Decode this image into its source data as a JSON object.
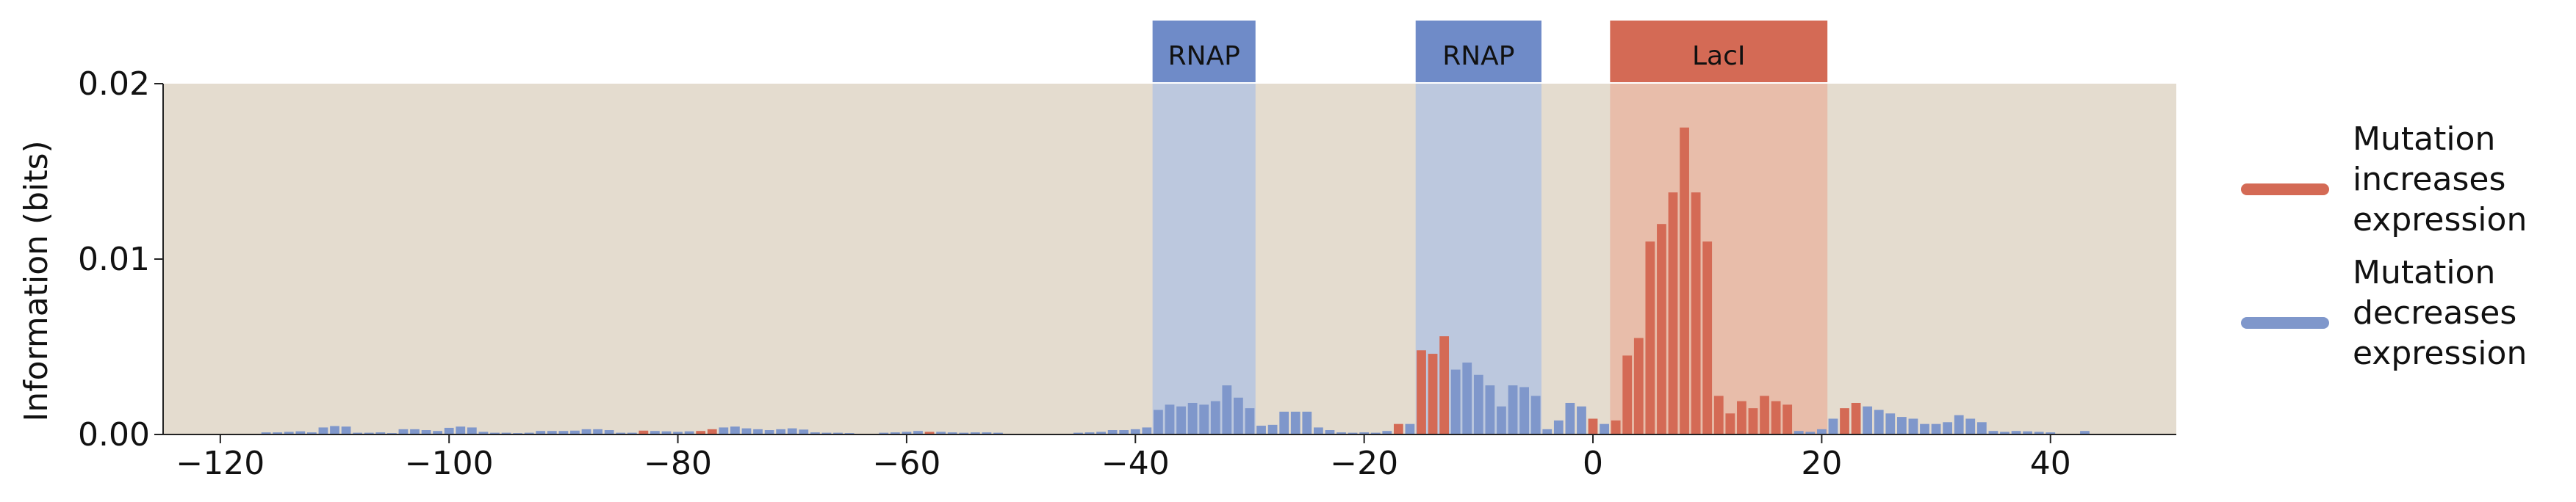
{
  "chart_data": {
    "type": "bar",
    "title": "",
    "xlabel": "",
    "ylabel": "Information (bits)",
    "xlim": [
      -125,
      51
    ],
    "ylim": [
      0,
      0.02
    ],
    "xticks": [
      -120,
      -100,
      -80,
      -60,
      -40,
      -20,
      0,
      20,
      40
    ],
    "xtick_labels": [
      "−120",
      "−100",
      "−80",
      "−60",
      "−40",
      "−20",
      "0",
      "20",
      "40"
    ],
    "yticks": [
      0,
      0.01,
      0.02
    ],
    "ytick_labels": [
      "0.00",
      "0.01",
      "0.02"
    ],
    "grid": false,
    "background": "#e4dccf",
    "colors": {
      "increase": "#d46a55",
      "decrease": "#7f97cb",
      "rnap_band": "#b9c6df",
      "laci_band": "#e8baa7",
      "rnap_label_bg": "#6f8bc8",
      "laci_label_bg": "#d46a55"
    },
    "regions": [
      {
        "label": "RNAP",
        "x0": -38,
        "x1": -30,
        "type": "RNAP"
      },
      {
        "label": "RNAP",
        "x0": -15,
        "x1": -5,
        "type": "RNAP"
      },
      {
        "label": "LacI",
        "x0": 2,
        "x1": 20,
        "type": "LacI"
      }
    ],
    "legend": {
      "position": "right",
      "entries": [
        {
          "lines": [
            "Mutation",
            "increases",
            "expression"
          ],
          "color": "#d46a55"
        },
        {
          "lines": [
            "Mutation",
            "decreases",
            "expression"
          ],
          "color": "#7f97cb"
        }
      ]
    },
    "bars": [
      [
        -116,
        0.00012,
        "d"
      ],
      [
        -115,
        0.00012,
        "d"
      ],
      [
        -114,
        0.00015,
        "d"
      ],
      [
        -113,
        0.00018,
        "d"
      ],
      [
        -112,
        0.00012,
        "d"
      ],
      [
        -111,
        0.0004,
        "d"
      ],
      [
        -110,
        0.00048,
        "d"
      ],
      [
        -109,
        0.00045,
        "d"
      ],
      [
        -108,
        0.0001,
        "d"
      ],
      [
        -107,
        0.0001,
        "d"
      ],
      [
        -106,
        0.00012,
        "d"
      ],
      [
        -105,
        8e-05,
        "d"
      ],
      [
        -104,
        0.0003,
        "d"
      ],
      [
        -103,
        0.0003,
        "d"
      ],
      [
        -102,
        0.00025,
        "d"
      ],
      [
        -101,
        0.0002,
        "d"
      ],
      [
        -100,
        0.00038,
        "d"
      ],
      [
        -99,
        0.00045,
        "d"
      ],
      [
        -98,
        0.0004,
        "d"
      ],
      [
        -97,
        0.00015,
        "d"
      ],
      [
        -96,
        0.0001,
        "d"
      ],
      [
        -95,
        0.0001,
        "d"
      ],
      [
        -94,
        8e-05,
        "d"
      ],
      [
        -93,
        0.0001,
        "d"
      ],
      [
        -92,
        0.0002,
        "d"
      ],
      [
        -91,
        0.0002,
        "d"
      ],
      [
        -90,
        0.0002,
        "d"
      ],
      [
        -89,
        0.00022,
        "d"
      ],
      [
        -88,
        0.0003,
        "d"
      ],
      [
        -87,
        0.0003,
        "d"
      ],
      [
        -86,
        0.00025,
        "d"
      ],
      [
        -85,
        0.0001,
        "d"
      ],
      [
        -84,
        0.0001,
        "d"
      ],
      [
        -83,
        0.00022,
        "i"
      ],
      [
        -82,
        0.0002,
        "d"
      ],
      [
        -81,
        0.00018,
        "d"
      ],
      [
        -80,
        0.00015,
        "d"
      ],
      [
        -79,
        0.00018,
        "d"
      ],
      [
        -78,
        0.0002,
        "i"
      ],
      [
        -77,
        0.0003,
        "i"
      ],
      [
        -76,
        0.0004,
        "d"
      ],
      [
        -75,
        0.00045,
        "d"
      ],
      [
        -74,
        0.00035,
        "d"
      ],
      [
        -73,
        0.0003,
        "d"
      ],
      [
        -72,
        0.00025,
        "d"
      ],
      [
        -71,
        0.0003,
        "d"
      ],
      [
        -70,
        0.00035,
        "d"
      ],
      [
        -69,
        0.00028,
        "d"
      ],
      [
        -68,
        0.00012,
        "d"
      ],
      [
        -67,
        0.0001,
        "d"
      ],
      [
        -66,
        0.0001,
        "d"
      ],
      [
        -65,
        8e-05,
        "d"
      ],
      [
        -62,
        0.0001,
        "d"
      ],
      [
        -61,
        0.00012,
        "d"
      ],
      [
        -60,
        0.00015,
        "d"
      ],
      [
        -59,
        0.0002,
        "d"
      ],
      [
        -58,
        0.00015,
        "i"
      ],
      [
        -57,
        0.00015,
        "d"
      ],
      [
        -56,
        0.00012,
        "d"
      ],
      [
        -55,
        0.0001,
        "d"
      ],
      [
        -54,
        0.00012,
        "d"
      ],
      [
        -53,
        0.00012,
        "d"
      ],
      [
        -52,
        0.0001,
        "d"
      ],
      [
        -45,
        0.0001,
        "d"
      ],
      [
        -44,
        0.00012,
        "d"
      ],
      [
        -43,
        0.00015,
        "d"
      ],
      [
        -42,
        0.00025,
        "d"
      ],
      [
        -41,
        0.00025,
        "d"
      ],
      [
        -40,
        0.0003,
        "d"
      ],
      [
        -39,
        0.0004,
        "d"
      ],
      [
        -38,
        0.0014,
        "d"
      ],
      [
        -37,
        0.0017,
        "d"
      ],
      [
        -36,
        0.0016,
        "d"
      ],
      [
        -35,
        0.0018,
        "d"
      ],
      [
        -34,
        0.0017,
        "d"
      ],
      [
        -33,
        0.0019,
        "d"
      ],
      [
        -32,
        0.0028,
        "d"
      ],
      [
        -31,
        0.0021,
        "d"
      ],
      [
        -30,
        0.0015,
        "d"
      ],
      [
        -29,
        0.0005,
        "d"
      ],
      [
        -28,
        0.00055,
        "d"
      ],
      [
        -27,
        0.0013,
        "d"
      ],
      [
        -26,
        0.0013,
        "d"
      ],
      [
        -25,
        0.0013,
        "d"
      ],
      [
        -24,
        0.0004,
        "d"
      ],
      [
        -23,
        0.00025,
        "d"
      ],
      [
        -22,
        0.00012,
        "d"
      ],
      [
        -21,
        0.0001,
        "d"
      ],
      [
        -20,
        0.00012,
        "d"
      ],
      [
        -19,
        0.0001,
        "d"
      ],
      [
        -18,
        0.0002,
        "d"
      ],
      [
        -17,
        0.0006,
        "i"
      ],
      [
        -16,
        0.0006,
        "d"
      ],
      [
        -15,
        0.0048,
        "i"
      ],
      [
        -14,
        0.0046,
        "i"
      ],
      [
        -13,
        0.0056,
        "i"
      ],
      [
        -12,
        0.0037,
        "d"
      ],
      [
        -11,
        0.0041,
        "d"
      ],
      [
        -10,
        0.0034,
        "d"
      ],
      [
        -9,
        0.0028,
        "d"
      ],
      [
        -8,
        0.0016,
        "d"
      ],
      [
        -7,
        0.0028,
        "d"
      ],
      [
        -6,
        0.0027,
        "d"
      ],
      [
        -5,
        0.0022,
        "d"
      ],
      [
        -4,
        0.0003,
        "d"
      ],
      [
        -3,
        0.0008,
        "d"
      ],
      [
        -2,
        0.0018,
        "d"
      ],
      [
        -1,
        0.0016,
        "d"
      ],
      [
        0,
        0.0009,
        "i"
      ],
      [
        1,
        0.0006,
        "d"
      ],
      [
        2,
        0.0008,
        "i"
      ],
      [
        3,
        0.0045,
        "i"
      ],
      [
        4,
        0.0055,
        "i"
      ],
      [
        5,
        0.011,
        "i"
      ],
      [
        6,
        0.012,
        "i"
      ],
      [
        7,
        0.0138,
        "i"
      ],
      [
        8,
        0.0175,
        "i"
      ],
      [
        9,
        0.0138,
        "i"
      ],
      [
        10,
        0.011,
        "i"
      ],
      [
        11,
        0.0022,
        "i"
      ],
      [
        12,
        0.0012,
        "i"
      ],
      [
        13,
        0.0019,
        "i"
      ],
      [
        14,
        0.0015,
        "i"
      ],
      [
        15,
        0.0022,
        "i"
      ],
      [
        16,
        0.0019,
        "i"
      ],
      [
        17,
        0.0017,
        "i"
      ],
      [
        18,
        0.0002,
        "d"
      ],
      [
        19,
        0.00015,
        "d"
      ],
      [
        20,
        0.0003,
        "d"
      ],
      [
        21,
        0.0009,
        "d"
      ],
      [
        22,
        0.0015,
        "i"
      ],
      [
        23,
        0.0018,
        "i"
      ],
      [
        24,
        0.0016,
        "d"
      ],
      [
        25,
        0.0014,
        "d"
      ],
      [
        26,
        0.0012,
        "d"
      ],
      [
        27,
        0.001,
        "d"
      ],
      [
        28,
        0.0009,
        "d"
      ],
      [
        29,
        0.0006,
        "d"
      ],
      [
        30,
        0.0006,
        "d"
      ],
      [
        31,
        0.0007,
        "d"
      ],
      [
        32,
        0.0011,
        "d"
      ],
      [
        33,
        0.0009,
        "d"
      ],
      [
        34,
        0.0007,
        "d"
      ],
      [
        35,
        0.0002,
        "d"
      ],
      [
        36,
        0.00015,
        "d"
      ],
      [
        37,
        0.0002,
        "d"
      ],
      [
        38,
        0.00018,
        "d"
      ],
      [
        39,
        0.00015,
        "d"
      ],
      [
        40,
        0.00012,
        "d"
      ],
      [
        43,
        0.0002,
        "d"
      ]
    ]
  }
}
